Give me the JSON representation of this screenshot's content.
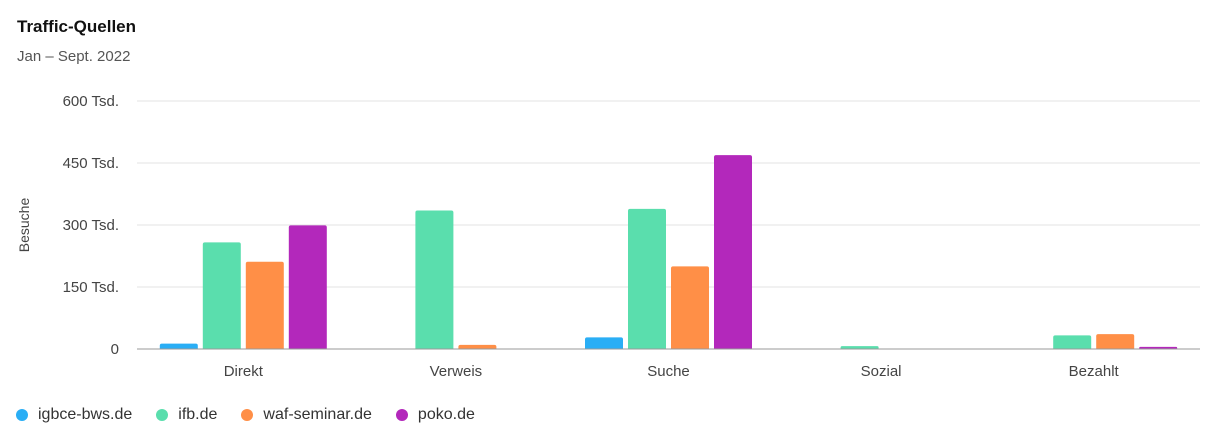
{
  "header": {
    "title": "Traffic-Quellen",
    "subtitle": "Jan – Sept. 2022"
  },
  "chart_data": {
    "type": "bar",
    "ylabel": "Besuche",
    "xlabel": "",
    "categories": [
      "Direkt",
      "Verweis",
      "Suche",
      "Sozial",
      "Bezahlt"
    ],
    "ylim": [
      0,
      600000
    ],
    "yticks": [
      0,
      150000,
      300000,
      450000,
      600000
    ],
    "ytick_labels": [
      "0",
      "150 Tsd.",
      "300 Tsd.",
      "450 Tsd.",
      "600 Tsd."
    ],
    "grid": true,
    "legend_position": "bottom-left",
    "series": [
      {
        "name": "igbce-bws.de",
        "color": "#2aaef5",
        "values": [
          13000,
          0,
          28000,
          0,
          0
        ]
      },
      {
        "name": "ifb.de",
        "color": "#5adead",
        "values": [
          258000,
          335000,
          339000,
          7000,
          33000
        ]
      },
      {
        "name": "waf-seminar.de",
        "color": "#ff8f47",
        "values": [
          211000,
          10000,
          200000,
          0,
          36000
        ]
      },
      {
        "name": "poko.de",
        "color": "#b328bb",
        "values": [
          299000,
          1000,
          469000,
          0,
          5000
        ]
      }
    ]
  }
}
